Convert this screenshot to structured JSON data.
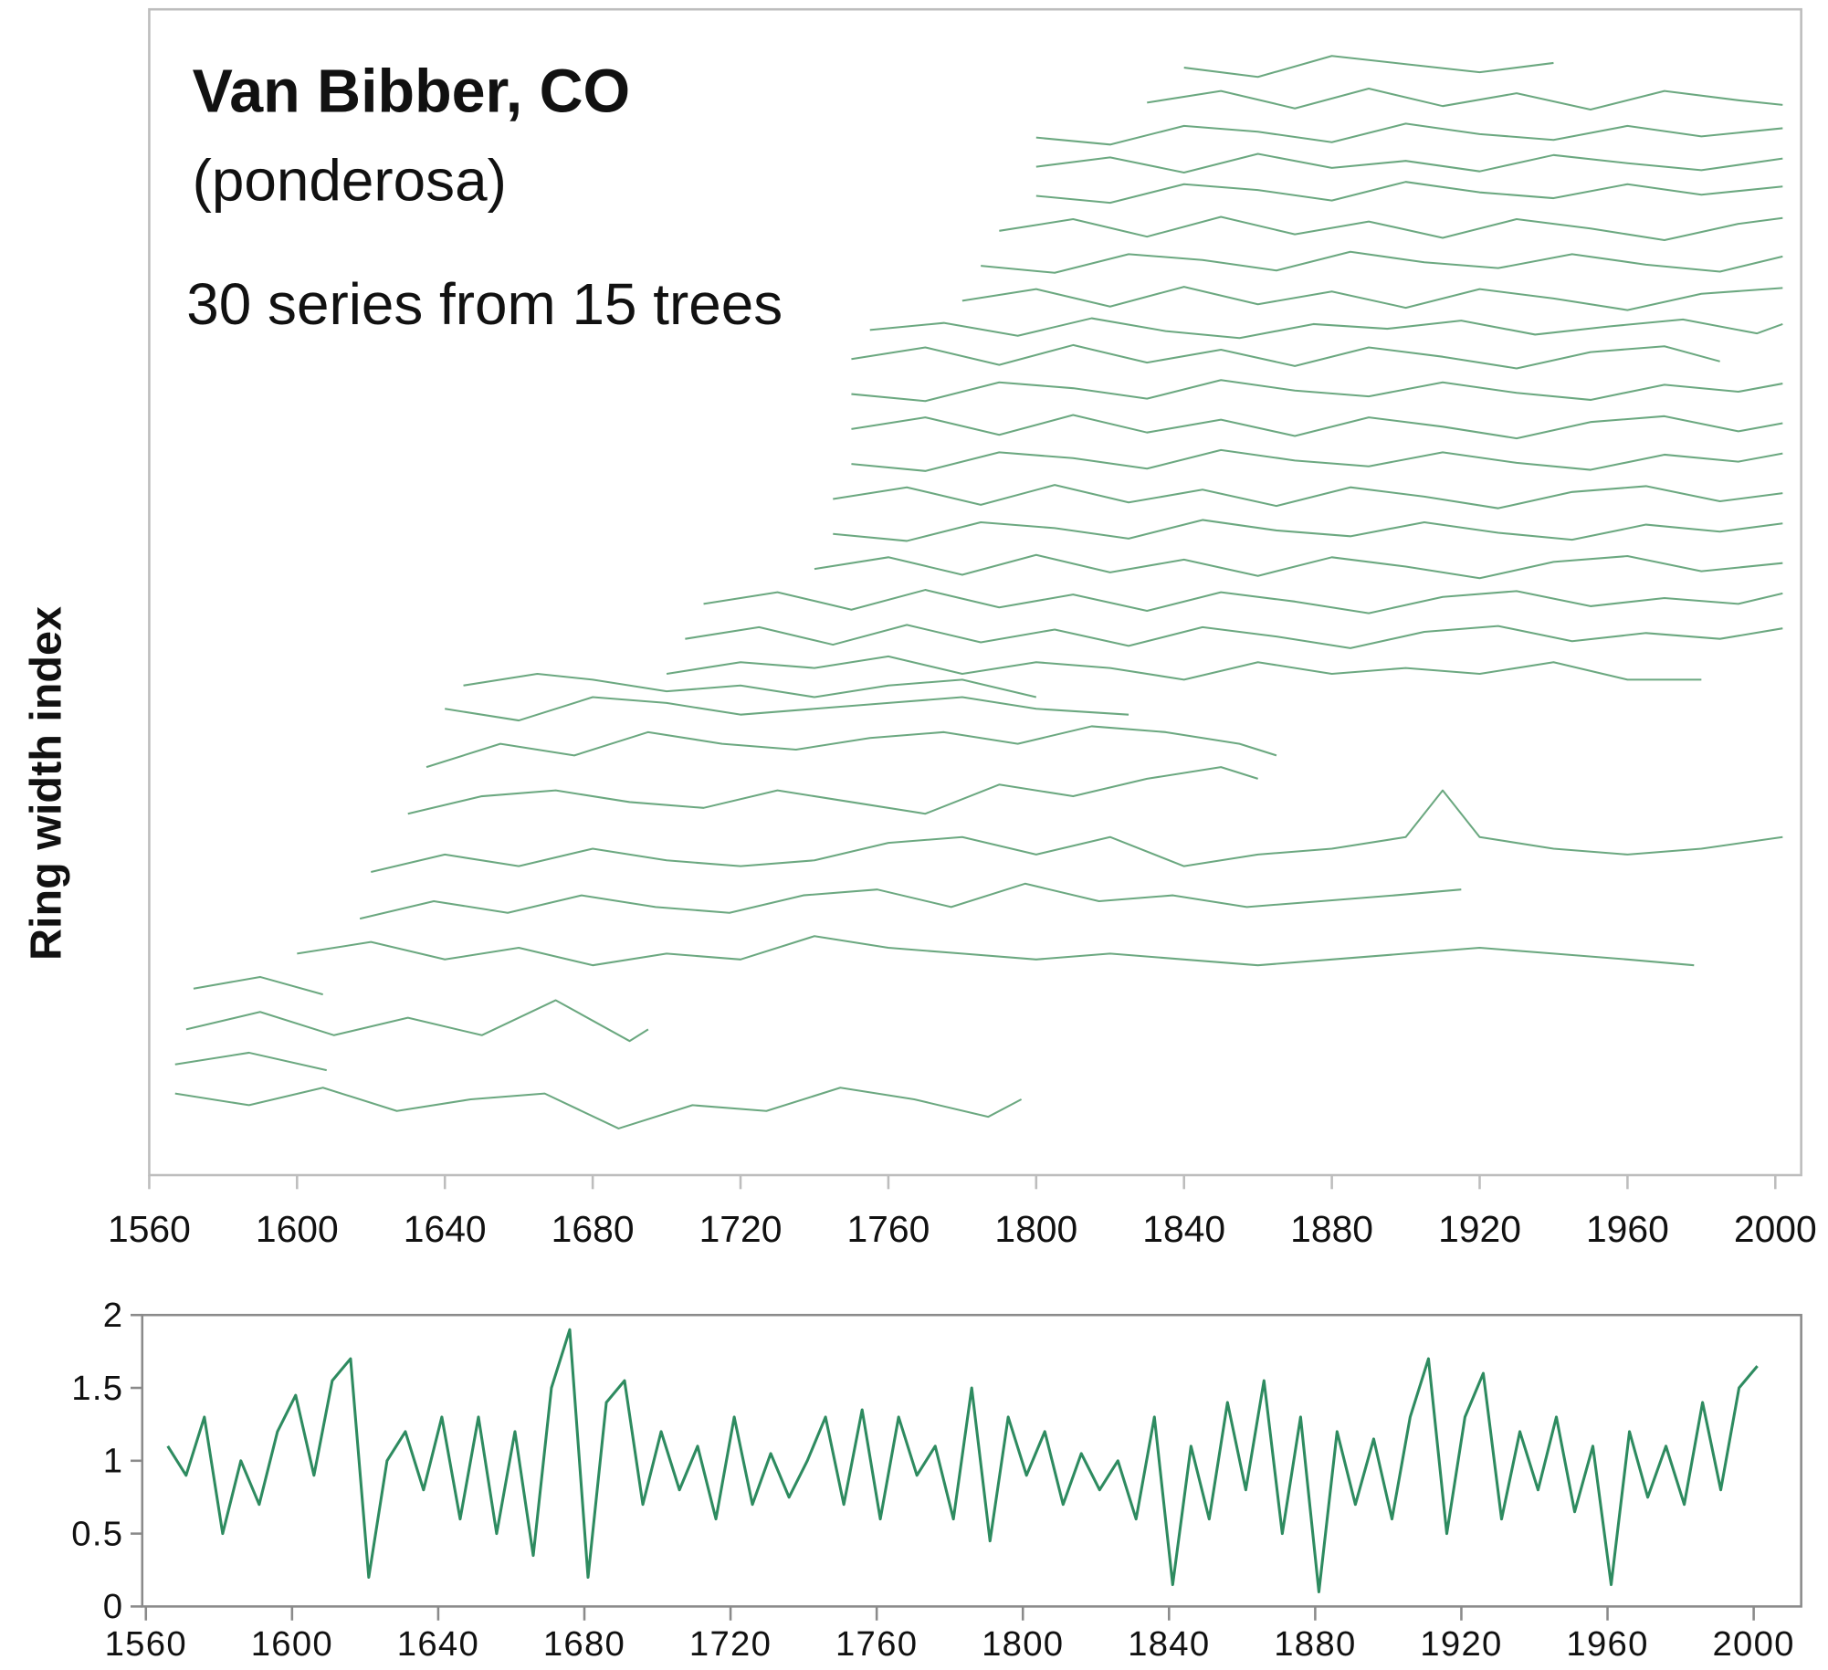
{
  "chart_data": [
    {
      "type": "line",
      "title": "Van Bibber, CO",
      "subtitle": "(ponderosa)",
      "annotation": "30 series from 15 trees",
      "y_label": "Ring width index",
      "color": "#5b9e72",
      "xlim": [
        1560,
        2007
      ],
      "ylim": [
        0,
        100
      ],
      "xticks": [
        1560,
        1600,
        1640,
        1680,
        1720,
        1760,
        1800,
        1840,
        1880,
        1920,
        1960,
        2000
      ],
      "series": [
        {
          "x": [
            1567,
            1587,
            1607,
            1627,
            1647,
            1667,
            1687,
            1707,
            1727,
            1747,
            1767,
            1787,
            1796
          ],
          "values": [
            7,
            6,
            7.5,
            5.5,
            6.5,
            7,
            4,
            6,
            5.5,
            7.5,
            6.5,
            5,
            6.5
          ]
        },
        {
          "x": [
            1567,
            1587,
            1608
          ],
          "values": [
            9.5,
            10.5,
            9
          ]
        },
        {
          "x": [
            1570,
            1590,
            1610,
            1630,
            1650,
            1670,
            1690,
            1695
          ],
          "values": [
            12.5,
            14,
            12,
            13.5,
            12,
            15,
            11.5,
            12.5
          ]
        },
        {
          "x": [
            1572,
            1590,
            1607
          ],
          "values": [
            16,
            17,
            15.5
          ]
        },
        {
          "x": [
            1600,
            1620,
            1640,
            1660,
            1680,
            1700,
            1720,
            1740,
            1760,
            1780,
            1800,
            1820,
            1840,
            1860,
            1880,
            1900,
            1920,
            1940,
            1960,
            1978
          ],
          "values": [
            19,
            20,
            18.5,
            19.5,
            18,
            19,
            18.5,
            20.5,
            19.5,
            19,
            18.5,
            19,
            18.5,
            18,
            18.5,
            19,
            19.5,
            19,
            18.5,
            18
          ]
        },
        {
          "x": [
            1617,
            1637,
            1657,
            1677,
            1697,
            1717,
            1737,
            1757,
            1777,
            1797,
            1817,
            1837,
            1857,
            1877,
            1897,
            1915
          ],
          "values": [
            22,
            23.5,
            22.5,
            24,
            23,
            22.5,
            24,
            24.5,
            23,
            25,
            23.5,
            24,
            23,
            23.5,
            24,
            24.5
          ]
        },
        {
          "x": [
            1620,
            1640,
            1660,
            1680,
            1700,
            1720,
            1740,
            1760,
            1780,
            1800,
            1820,
            1840,
            1860,
            1880,
            1900,
            1910,
            1920,
            1940,
            1960,
            1980,
            2002
          ],
          "values": [
            26,
            27.5,
            26.5,
            28,
            27,
            26.5,
            27,
            28.5,
            29,
            27.5,
            29,
            26.5,
            27.5,
            28,
            29,
            33,
            29,
            28,
            27.5,
            28,
            29
          ]
        },
        {
          "x": [
            1630,
            1650,
            1670,
            1690,
            1710,
            1730,
            1750,
            1770,
            1790,
            1810,
            1830,
            1850,
            1860
          ],
          "values": [
            31,
            32.5,
            33,
            32,
            31.5,
            33,
            32,
            31,
            33.5,
            32.5,
            34,
            35,
            34
          ]
        },
        {
          "x": [
            1635,
            1655,
            1675,
            1695,
            1715,
            1735,
            1755,
            1775,
            1795,
            1815,
            1835,
            1855,
            1865
          ],
          "values": [
            35,
            37,
            36,
            38,
            37,
            36.5,
            37.5,
            38,
            37,
            38.5,
            38,
            37,
            36
          ]
        },
        {
          "x": [
            1640,
            1660,
            1680,
            1700,
            1720,
            1740,
            1760,
            1780,
            1800,
            1825
          ],
          "values": [
            40,
            39,
            41,
            40.5,
            39.5,
            40,
            40.5,
            41,
            40,
            39.5
          ]
        },
        {
          "x": [
            1645,
            1665,
            1680,
            1700,
            1720,
            1740,
            1760,
            1780,
            1800
          ],
          "values": [
            42,
            43,
            42.5,
            41.5,
            42,
            41,
            42,
            42.5,
            41
          ]
        },
        {
          "x": [
            1700,
            1720,
            1740,
            1760,
            1780,
            1800,
            1820,
            1840,
            1860,
            1880,
            1900,
            1920,
            1940,
            1960,
            1980
          ],
          "values": [
            43,
            44,
            43.5,
            44.5,
            43,
            44,
            43.5,
            42.5,
            44,
            43,
            43.5,
            43,
            44,
            42.5,
            42.5
          ]
        },
        {
          "x": [
            1705,
            1725,
            1745,
            1765,
            1785,
            1805,
            1825,
            1845,
            1865,
            1885,
            1905,
            1925,
            1945,
            1965,
            1985,
            2002
          ],
          "values": [
            46,
            47,
            45.5,
            47.2,
            45.7,
            46.8,
            45.4,
            47,
            46.2,
            45.2,
            46.6,
            47.1,
            45.8,
            46.5,
            46,
            46.9
          ]
        },
        {
          "x": [
            1710,
            1730,
            1750,
            1770,
            1790,
            1810,
            1830,
            1850,
            1870,
            1890,
            1910,
            1930,
            1950,
            1970,
            1990,
            2002
          ],
          "values": [
            49,
            50,
            48.5,
            50.2,
            48.7,
            49.8,
            48.4,
            50,
            49.2,
            48.2,
            49.6,
            50.1,
            48.8,
            49.5,
            49,
            49.9
          ]
        },
        {
          "x": [
            1740,
            1760,
            1780,
            1800,
            1820,
            1840,
            1860,
            1880,
            1900,
            1920,
            1940,
            1960,
            1980,
            2002
          ],
          "values": [
            52,
            53,
            51.5,
            53.2,
            51.7,
            52.8,
            51.4,
            53,
            52.2,
            51.2,
            52.6,
            53.1,
            51.8,
            52.5
          ]
        },
        {
          "x": [
            1745,
            1765,
            1785,
            1805,
            1825,
            1845,
            1865,
            1885,
            1905,
            1925,
            1945,
            1965,
            1985,
            2002
          ],
          "values": [
            55,
            54.4,
            56,
            55.5,
            54.6,
            56.2,
            55.3,
            54.8,
            56,
            55.1,
            54.5,
            55.8,
            55.2,
            55.9
          ]
        },
        {
          "x": [
            1745,
            1765,
            1785,
            1805,
            1825,
            1845,
            1865,
            1885,
            1905,
            1925,
            1945,
            1965,
            1985,
            2002
          ],
          "values": [
            58,
            59,
            57.5,
            59.2,
            57.7,
            58.8,
            57.4,
            59,
            58.2,
            57.2,
            58.6,
            59.1,
            57.8,
            58.5
          ]
        },
        {
          "x": [
            1750,
            1770,
            1790,
            1810,
            1830,
            1850,
            1870,
            1890,
            1910,
            1930,
            1950,
            1970,
            1990,
            2002
          ],
          "values": [
            61,
            60.4,
            62,
            61.5,
            60.6,
            62.2,
            61.3,
            60.8,
            62,
            61.1,
            60.5,
            61.8,
            61.2,
            61.9
          ]
        },
        {
          "x": [
            1750,
            1770,
            1790,
            1810,
            1830,
            1850,
            1870,
            1890,
            1910,
            1930,
            1950,
            1970,
            1990,
            2002
          ],
          "values": [
            64,
            65,
            63.5,
            65.2,
            63.7,
            64.8,
            63.4,
            65,
            64.2,
            63.2,
            64.6,
            65.1,
            63.8,
            64.5
          ]
        },
        {
          "x": [
            1750,
            1770,
            1790,
            1810,
            1830,
            1850,
            1870,
            1890,
            1910,
            1930,
            1950,
            1970,
            1990,
            2002
          ],
          "values": [
            67,
            66.4,
            68,
            67.5,
            66.6,
            68.2,
            67.3,
            66.8,
            68,
            67.1,
            66.5,
            67.8,
            67.2,
            67.9
          ]
        },
        {
          "x": [
            1750,
            1770,
            1790,
            1810,
            1830,
            1850,
            1870,
            1890,
            1910,
            1930,
            1950,
            1970,
            1985
          ],
          "values": [
            70,
            71,
            69.5,
            71.2,
            69.7,
            70.8,
            69.4,
            71,
            70.2,
            69.2,
            70.6,
            71.1,
            69.8
          ]
        },
        {
          "x": [
            1755,
            1775,
            1795,
            1815,
            1835,
            1855,
            1875,
            1895,
            1915,
            1935,
            1955,
            1975,
            1995,
            2002
          ],
          "values": [
            72.5,
            73.1,
            72,
            73.5,
            72.4,
            71.8,
            73,
            72.6,
            73.3,
            72.1,
            72.8,
            73.4,
            72.2,
            73
          ]
        },
        {
          "x": [
            1780,
            1800,
            1820,
            1840,
            1860,
            1880,
            1900,
            1920,
            1940,
            1960,
            1980,
            2002
          ],
          "values": [
            75,
            76,
            74.5,
            76.2,
            74.7,
            75.8,
            74.4,
            76,
            75.2,
            74.2,
            75.6,
            76.1
          ]
        },
        {
          "x": [
            1785,
            1805,
            1825,
            1845,
            1865,
            1885,
            1905,
            1925,
            1945,
            1965,
            1985,
            2002
          ],
          "values": [
            78,
            77.4,
            79,
            78.5,
            77.6,
            79.2,
            78.3,
            77.8,
            79,
            78.1,
            77.5,
            78.8
          ]
        },
        {
          "x": [
            1790,
            1810,
            1830,
            1850,
            1870,
            1890,
            1910,
            1930,
            1950,
            1970,
            1990,
            2002
          ],
          "values": [
            81,
            82,
            80.5,
            82.2,
            80.7,
            81.8,
            80.4,
            82,
            81.2,
            80.2,
            81.6,
            82.1
          ]
        },
        {
          "x": [
            1800,
            1820,
            1840,
            1860,
            1880,
            1900,
            1920,
            1940,
            1960,
            1980,
            2002
          ],
          "values": [
            84,
            83.4,
            85,
            84.5,
            83.6,
            85.2,
            84.3,
            83.8,
            85,
            84.1,
            84.8
          ]
        },
        {
          "x": [
            1800,
            1820,
            1840,
            1860,
            1880,
            1900,
            1920,
            1940,
            1960,
            1980,
            2002
          ],
          "values": [
            86.5,
            87.3,
            86,
            87.6,
            86.4,
            87,
            86.1,
            87.5,
            86.8,
            86.2,
            87.2
          ]
        },
        {
          "x": [
            1800,
            1820,
            1840,
            1860,
            1880,
            1900,
            1920,
            1940,
            1960,
            1980,
            2002
          ],
          "values": [
            89,
            88.4,
            90,
            89.5,
            88.6,
            90.2,
            89.3,
            88.8,
            90,
            89.1,
            89.8
          ]
        },
        {
          "x": [
            1830,
            1850,
            1870,
            1890,
            1910,
            1930,
            1950,
            1970,
            1990,
            2002
          ],
          "values": [
            92,
            93,
            91.5,
            93.2,
            91.7,
            92.8,
            91.4,
            93,
            92.2,
            91.8
          ]
        },
        {
          "x": [
            1840,
            1860,
            1880,
            1900,
            1920,
            1940
          ],
          "values": [
            95,
            94.2,
            96,
            95.3,
            94.6,
            95.4
          ]
        }
      ]
    },
    {
      "type": "line",
      "color": "#2e8b60",
      "xlim": [
        1559,
        2013
      ],
      "ylim": [
        0,
        2
      ],
      "xticks": [
        1560,
        1600,
        1640,
        1680,
        1720,
        1760,
        1800,
        1840,
        1880,
        1920,
        1960,
        2000
      ],
      "yticks": [
        0,
        0.5,
        1,
        1.5,
        2
      ],
      "x": [
        1566,
        1571,
        1576,
        1581,
        1586,
        1591,
        1596,
        1601,
        1606,
        1611,
        1616,
        1621,
        1626,
        1631,
        1636,
        1641,
        1646,
        1651,
        1656,
        1661,
        1666,
        1671,
        1676,
        1681,
        1686,
        1691,
        1696,
        1701,
        1706,
        1711,
        1716,
        1721,
        1726,
        1731,
        1736,
        1741,
        1746,
        1751,
        1756,
        1761,
        1766,
        1771,
        1776,
        1781,
        1786,
        1791,
        1796,
        1801,
        1806,
        1811,
        1816,
        1821,
        1826,
        1831,
        1836,
        1841,
        1846,
        1851,
        1856,
        1861,
        1866,
        1871,
        1876,
        1881,
        1886,
        1891,
        1896,
        1901,
        1906,
        1911,
        1916,
        1921,
        1926,
        1931,
        1936,
        1941,
        1946,
        1951,
        1956,
        1961,
        1966,
        1971,
        1976,
        1981,
        1986,
        1991,
        1996,
        2001
      ],
      "values": [
        1.1,
        0.9,
        1.3,
        0.5,
        1.0,
        0.7,
        1.2,
        1.45,
        0.9,
        1.55,
        1.7,
        0.2,
        1.0,
        1.2,
        0.8,
        1.3,
        0.6,
        1.3,
        0.5,
        1.2,
        0.35,
        1.5,
        1.9,
        0.2,
        1.4,
        1.55,
        0.7,
        1.2,
        0.8,
        1.1,
        0.6,
        1.3,
        0.7,
        1.05,
        0.75,
        1.0,
        1.3,
        0.7,
        1.35,
        0.6,
        1.3,
        0.9,
        1.1,
        0.6,
        1.5,
        0.45,
        1.3,
        0.9,
        1.2,
        0.7,
        1.05,
        0.8,
        1.0,
        0.6,
        1.3,
        0.15,
        1.1,
        0.6,
        1.4,
        0.8,
        1.55,
        0.5,
        1.3,
        0.1,
        1.2,
        0.7,
        1.15,
        0.6,
        1.3,
        1.7,
        0.5,
        1.3,
        1.6,
        0.6,
        1.2,
        0.8,
        1.3,
        0.65,
        1.1,
        0.15,
        1.2,
        0.75,
        1.1,
        0.7,
        1.4,
        0.8,
        1.5,
        1.65
      ]
    }
  ]
}
